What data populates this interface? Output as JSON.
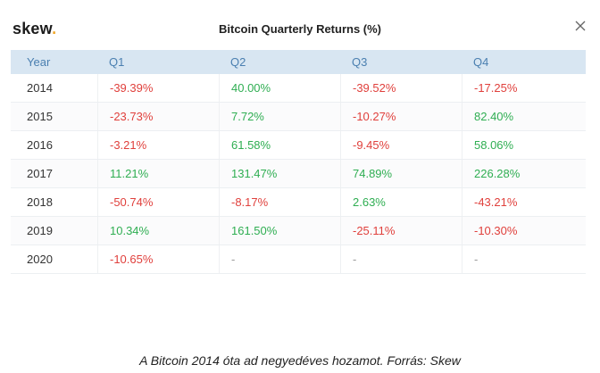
{
  "header": {
    "logo_text": "skew",
    "logo_dot": ".",
    "title": "Bitcoin Quarterly Returns (%)"
  },
  "caption": "A Bitcoin 2014 óta ad negyedéves hozamot. Forrás: Skew",
  "colors": {
    "positive": "#2fae52",
    "negative": "#e0403c",
    "neutral": "#999999",
    "header_bg": "#d8e6f2",
    "header_text": "#4a7fb0",
    "logo_accent": "#f0a72a"
  },
  "icons": {
    "close": "close-icon"
  },
  "chart_data": {
    "type": "table",
    "title": "Bitcoin Quarterly Returns (%)",
    "columns": [
      "Year",
      "Q1",
      "Q2",
      "Q3",
      "Q4"
    ],
    "rows": [
      {
        "year": "2014",
        "values": [
          "-39.39%",
          "40.00%",
          "-39.52%",
          "-17.25%"
        ]
      },
      {
        "year": "2015",
        "values": [
          "-23.73%",
          "7.72%",
          "-10.27%",
          "82.40%"
        ]
      },
      {
        "year": "2016",
        "values": [
          "-3.21%",
          "61.58%",
          "-9.45%",
          "58.06%"
        ]
      },
      {
        "year": "2017",
        "values": [
          "11.21%",
          "131.47%",
          "74.89%",
          "226.28%"
        ]
      },
      {
        "year": "2018",
        "values": [
          "-50.74%",
          "-8.17%",
          "2.63%",
          "-43.21%"
        ]
      },
      {
        "year": "2019",
        "values": [
          "10.34%",
          "161.50%",
          "-25.11%",
          "-10.30%"
        ]
      },
      {
        "year": "2020",
        "values": [
          "-10.65%",
          "-",
          "-",
          "-"
        ]
      }
    ]
  }
}
